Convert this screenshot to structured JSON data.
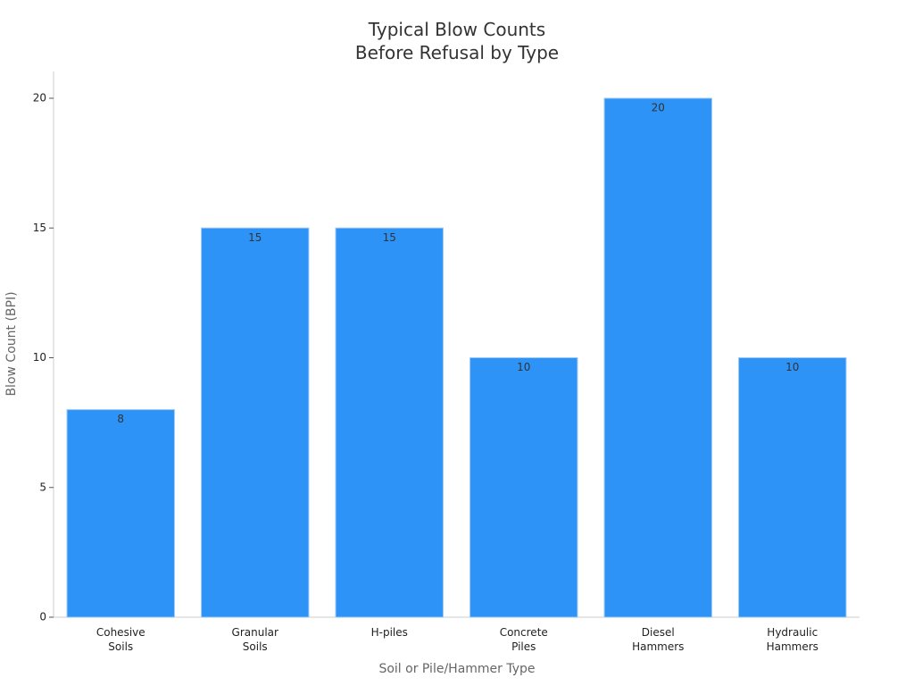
{
  "chart_data": {
    "type": "bar",
    "title": "Typical Blow Counts\nBefore Refusal by Type",
    "x_label": "Soil or Pile/Hammer Type",
    "y_label": "Blow Count (BPI)",
    "categories": [
      "Cohesive\nSoils",
      "Granular\nSoils",
      "H-piles",
      "Concrete\nPiles",
      "Diesel\nHammers",
      "Hydraulic\nHammers"
    ],
    "values": [
      8,
      15,
      15,
      10,
      20,
      10
    ],
    "color": "#2e93f7",
    "ylim": [
      0,
      20
    ],
    "yticks": [
      0,
      5,
      10,
      15,
      20
    ],
    "grid": false
  }
}
